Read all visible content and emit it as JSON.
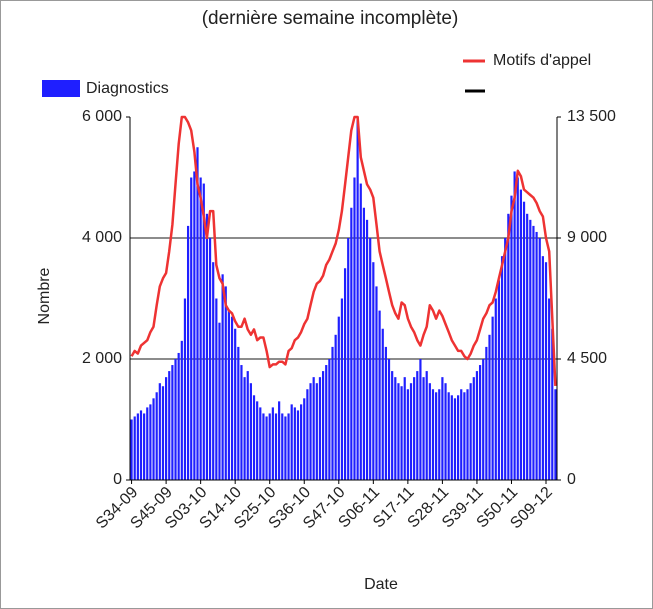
{
  "chart_data": {
    "type": "combo",
    "title": "(dernière semaine incomplète)",
    "x_label": "Date",
    "y_label": "Nombre",
    "categories": [
      "S34-09",
      null,
      null,
      null,
      null,
      null,
      null,
      null,
      null,
      null,
      null,
      "S45-09",
      null,
      null,
      null,
      null,
      null,
      null,
      null,
      null,
      null,
      null,
      "S03-10",
      null,
      null,
      null,
      null,
      null,
      null,
      null,
      null,
      null,
      null,
      "S14-10",
      null,
      null,
      null,
      null,
      null,
      null,
      null,
      null,
      null,
      null,
      "S25-10",
      null,
      null,
      null,
      null,
      null,
      null,
      null,
      null,
      null,
      null,
      "S36-10",
      null,
      null,
      null,
      null,
      null,
      null,
      null,
      null,
      null,
      null,
      "S47-10",
      null,
      null,
      null,
      null,
      null,
      null,
      null,
      null,
      null,
      null,
      "S06-11",
      null,
      null,
      null,
      null,
      null,
      null,
      null,
      null,
      null,
      null,
      "S17-11",
      null,
      null,
      null,
      null,
      null,
      null,
      null,
      null,
      null,
      null,
      "S28-11",
      null,
      null,
      null,
      null,
      null,
      null,
      null,
      null,
      null,
      null,
      "S39-11",
      null,
      null,
      null,
      null,
      null,
      null,
      null,
      null,
      null,
      null,
      "S50-11",
      null,
      null,
      null,
      null,
      null,
      null,
      null,
      null,
      null,
      null,
      "S09-12",
      null,
      null,
      null
    ],
    "series": [
      {
        "name": "Diagnostics",
        "type": "bar",
        "color": "#1f1fff",
        "values": [
          1000,
          1050,
          1100,
          1150,
          1100,
          1200,
          1250,
          1350,
          1450,
          1600,
          1550,
          1700,
          1800,
          1900,
          2000,
          2100,
          2300,
          3000,
          4200,
          5000,
          5100,
          5500,
          5000,
          4900,
          4400,
          4000,
          3600,
          3000,
          2600,
          3400,
          3200,
          2800,
          2700,
          2500,
          2200,
          1900,
          1700,
          1800,
          1600,
          1400,
          1300,
          1200,
          1100,
          1050,
          1100,
          1200,
          1100,
          1300,
          1100,
          1050,
          1100,
          1250,
          1200,
          1150,
          1250,
          1350,
          1500,
          1600,
          1700,
          1600,
          1700,
          1800,
          1900,
          2000,
          2200,
          2400,
          2700,
          3000,
          3500,
          4000,
          4500,
          5000,
          6000,
          4900,
          4500,
          4300,
          4000,
          3600,
          3200,
          2800,
          2500,
          2200,
          2000,
          1800,
          1700,
          1600,
          1550,
          1700,
          1500,
          1600,
          1700,
          1800,
          2000,
          1700,
          1800,
          1600,
          1500,
          1450,
          1500,
          1700,
          1600,
          1450,
          1400,
          1350,
          1400,
          1500,
          1450,
          1500,
          1600,
          1700,
          1800,
          1900,
          2000,
          2200,
          2400,
          2700,
          3000,
          3300,
          3700,
          4000,
          4400,
          4700,
          5100,
          5000,
          4800,
          4600,
          4400,
          4300,
          4200,
          4100,
          4000,
          3700,
          3600,
          3000,
          2500,
          1500
        ]
      },
      {
        "name": "Motifs d'appel",
        "type": "line",
        "axis": "y2",
        "color": "#ee3333",
        "values": [
          4600,
          4800,
          4700,
          5000,
          5100,
          5200,
          5500,
          5700,
          6500,
          7200,
          7500,
          7700,
          8500,
          9500,
          11000,
          12500,
          13500,
          13500,
          13300,
          13000,
          12200,
          11000,
          10500,
          9800,
          9000,
          10000,
          10000,
          8000,
          7500,
          7300,
          6500,
          6300,
          6200,
          5900,
          5700,
          5700,
          6000,
          5600,
          5400,
          5600,
          5200,
          5300,
          5300,
          4800,
          4200,
          4300,
          4300,
          4400,
          4400,
          4300,
          4800,
          4900,
          5200,
          5300,
          5500,
          5800,
          6000,
          6500,
          7000,
          7300,
          7400,
          7600,
          8000,
          8200,
          8500,
          8800,
          9300,
          10000,
          11000,
          12000,
          13000,
          13500,
          13500,
          12000,
          11500,
          11000,
          10800,
          10500,
          9500,
          8500,
          8000,
          7500,
          7000,
          6500,
          6200,
          6000,
          6600,
          6500,
          6000,
          5700,
          5500,
          5200,
          5000,
          5400,
          5700,
          6500,
          6300,
          6000,
          6300,
          6100,
          5800,
          5500,
          5200,
          5000,
          4800,
          4800,
          4600,
          4500,
          4700,
          5000,
          5200,
          5600,
          6000,
          6200,
          6500,
          6600,
          7000,
          7500,
          8000,
          8500,
          9000,
          10000,
          10500,
          11500,
          11300,
          10800,
          10700,
          10600,
          10500,
          10300,
          10000,
          9800,
          9000,
          8500,
          6000,
          3500
        ]
      }
    ],
    "ylim": [
      0,
      6000
    ],
    "yticks": [
      0,
      {
        "value": 2000,
        "label": "2 000"
      },
      {
        "value": 4000,
        "label": "4 000"
      },
      {
        "value": 6000,
        "label": "6 000"
      }
    ],
    "y2lim": [
      0,
      13500
    ],
    "y2ticks": [
      0,
      {
        "value": 4500,
        "label": "4 500"
      },
      {
        "value": 9000,
        "label": "9 000"
      },
      {
        "value": 13500,
        "label": "13 500"
      }
    ],
    "grid": true
  }
}
